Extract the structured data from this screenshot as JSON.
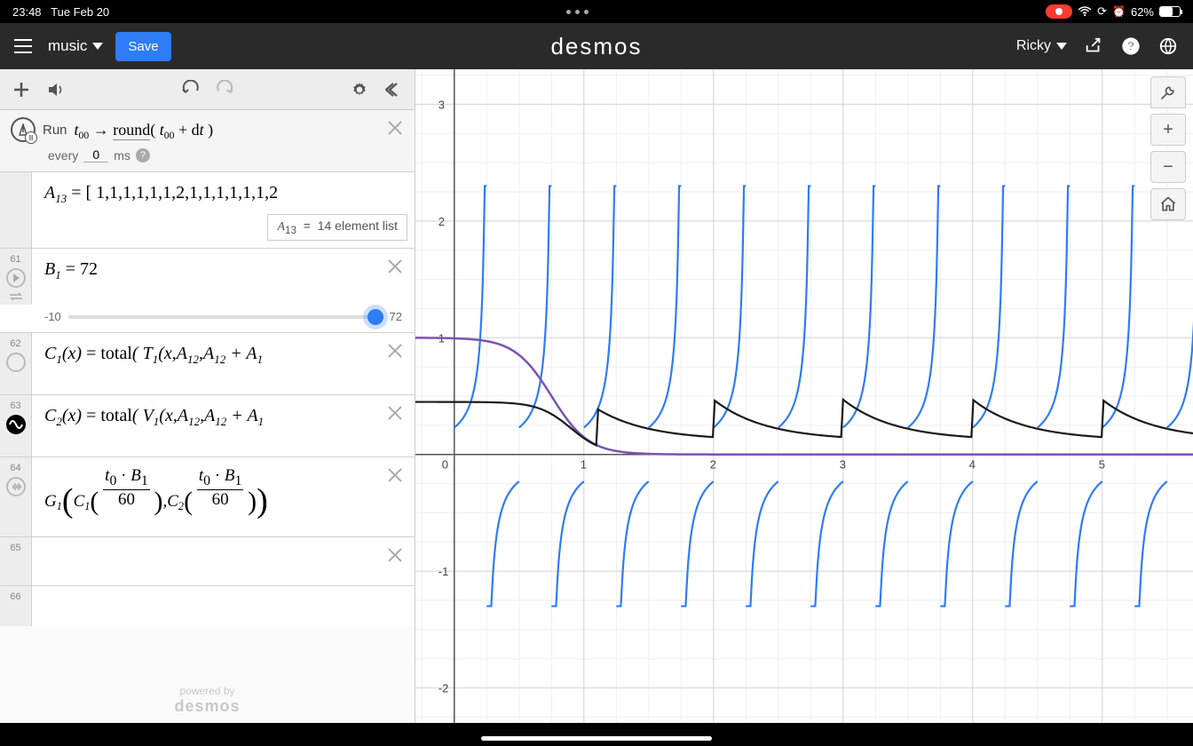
{
  "status": {
    "time": "23:48",
    "date": "Tue Feb 20",
    "battery_pct": "62%",
    "battery_fill": 62
  },
  "header": {
    "title": "music",
    "save": "Save",
    "logo": "desmos",
    "user": "Ricky"
  },
  "ticker": {
    "run_label": "Run",
    "math": "t₀₀ → round( t₀₀ + dt )",
    "every_label": "every",
    "every_value": "0",
    "unit": "ms"
  },
  "rows": {
    "a13": {
      "math": "A₁₃ = [ 1,1,1,1,1,1,2,1,1,1,1,1,1,2",
      "badge_var": "A₁₃",
      "badge_text": "14 element list"
    },
    "r61": {
      "num": "61",
      "math": "B₁ = 72",
      "slider_min": "-10",
      "slider_val": "72"
    },
    "r62": {
      "num": "62",
      "math": "C₁(x) = total( T₁(x,A₁₂,A₁₂ + A₁"
    },
    "r63": {
      "num": "63",
      "math": "C₂(x) = total( V₁(x,A₁₂,A₁₂ + A₁"
    },
    "r64": {
      "num": "64",
      "math": "G₁( C₁( t₀·B₁ / 60 ), C₂( t₀·B₁ / 60 ) )"
    },
    "r65": {
      "num": "65",
      "math": ""
    },
    "r66": {
      "num": "66",
      "math": ""
    }
  },
  "powered": {
    "line1": "powered by",
    "line2": "desmos"
  },
  "graph": {
    "x_min": -0.3,
    "x_max": 5.7,
    "y_min": -2.3,
    "y_max": 3.3,
    "x_ticks": [
      0,
      1,
      2,
      3,
      4,
      5
    ],
    "y_ticks": [
      -2,
      -1,
      0,
      1,
      2,
      3
    ],
    "blue_period": 0.5,
    "blue_color": "#2e7cf6",
    "purple_color": "#7b52b0",
    "black_color": "#1a1a1a",
    "grid_color": "#d5d5d5",
    "grid_minor": "#eeeeee",
    "axis_color": "#555555",
    "axis_font": 13
  }
}
